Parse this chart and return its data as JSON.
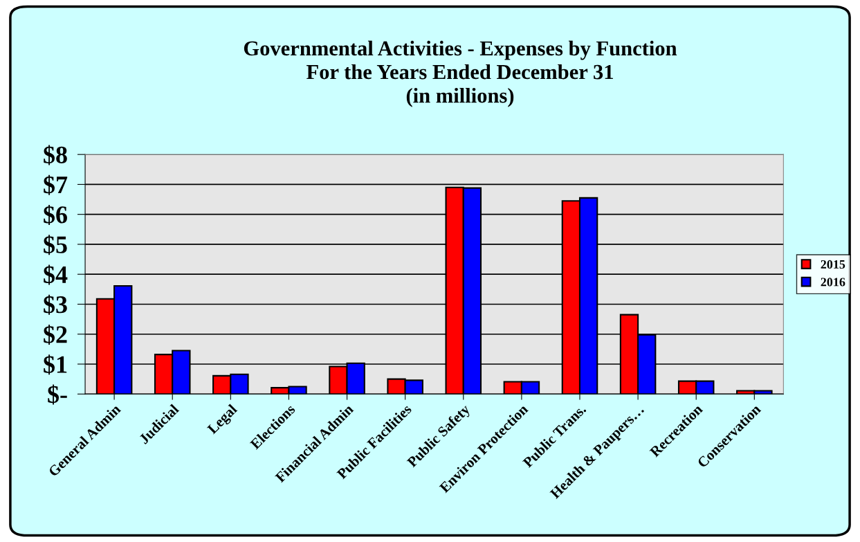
{
  "chart_data": {
    "type": "bar",
    "title": "Governmental Activities - Expenses by Function\nFor the Years Ended December 31\n(in millions)",
    "categories": [
      "General Admin",
      "Judicial",
      "Legal",
      "Elections",
      "Financial Admin",
      "Public Facilities",
      "Public Safety",
      "Environ Protection",
      "Public Trans.",
      "Health & Paupers…",
      "Recreation",
      "Conservation"
    ],
    "series": [
      {
        "name": "2015",
        "color": "#ff0000",
        "values": [
          3.18,
          1.32,
          0.61,
          0.21,
          0.92,
          0.5,
          6.9,
          0.41,
          6.45,
          2.65,
          0.43,
          0.11
        ]
      },
      {
        "name": "2016",
        "color": "#0000ff",
        "values": [
          3.61,
          1.45,
          0.66,
          0.25,
          1.03,
          0.46,
          6.88,
          0.41,
          6.55,
          1.98,
          0.43,
          0.11
        ]
      }
    ],
    "ylim": [
      0,
      8
    ],
    "yticks": [
      {
        "value": 0,
        "label": "$-"
      },
      {
        "value": 1,
        "label": "$1"
      },
      {
        "value": 2,
        "label": "$2"
      },
      {
        "value": 3,
        "label": "$3"
      },
      {
        "value": 4,
        "label": "$4"
      },
      {
        "value": 5,
        "label": "$5"
      },
      {
        "value": 6,
        "label": "$6"
      },
      {
        "value": 7,
        "label": "$7"
      },
      {
        "value": 8,
        "label": "$8"
      }
    ],
    "grid": "y",
    "legend": "right"
  }
}
